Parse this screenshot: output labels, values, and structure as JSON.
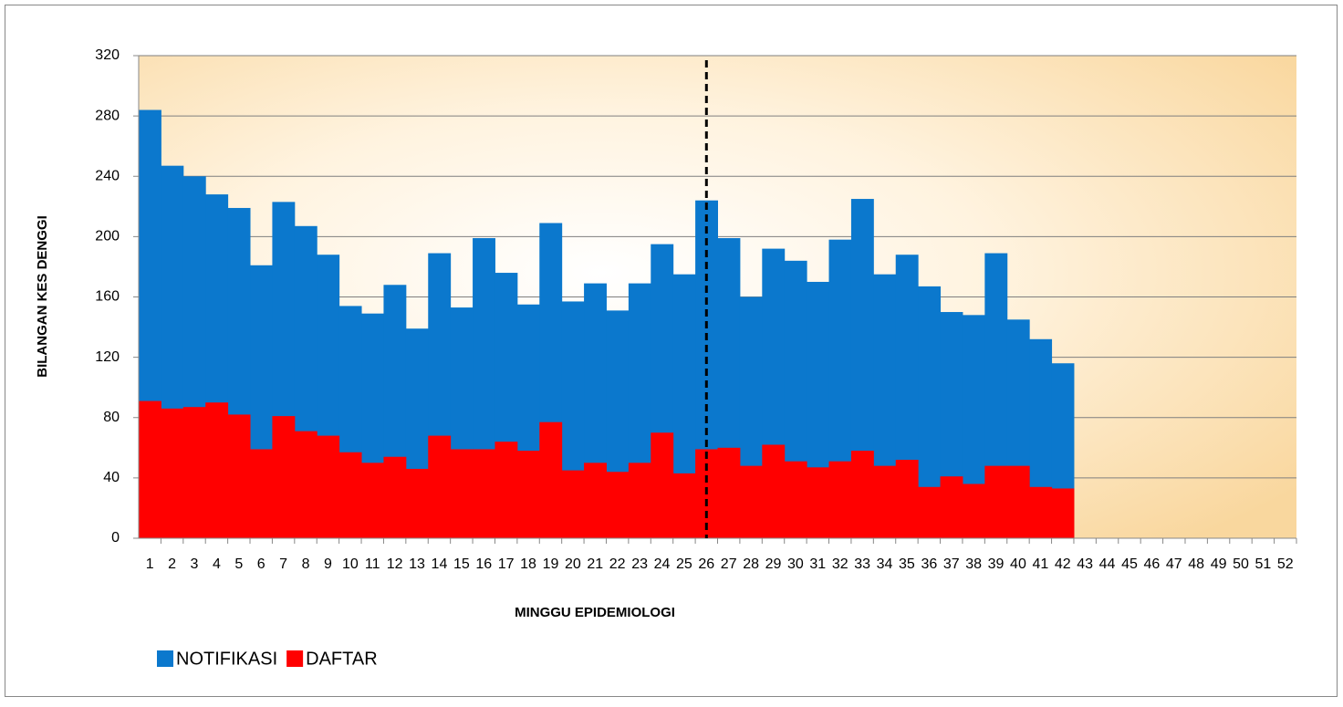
{
  "chart_data": {
    "type": "overlap-bar",
    "x_label": "MINGGU EPIDEMIOLOGI",
    "y_label": "BILANGAN KES DENGGI",
    "categories": [
      1,
      2,
      3,
      4,
      5,
      6,
      7,
      8,
      9,
      10,
      11,
      12,
      13,
      14,
      15,
      16,
      17,
      18,
      19,
      20,
      21,
      22,
      23,
      24,
      25,
      26,
      27,
      28,
      29,
      30,
      31,
      32,
      33,
      34,
      35,
      36,
      37,
      38,
      39,
      40,
      41,
      42,
      43,
      44,
      45,
      46,
      47,
      48,
      49,
      50,
      51,
      52
    ],
    "series": [
      {
        "name": "NOTIFIKASI",
        "color": "#0b78cd",
        "values": [
          284,
          247,
          240,
          228,
          219,
          181,
          223,
          207,
          188,
          154,
          149,
          168,
          139,
          189,
          153,
          199,
          176,
          155,
          209,
          157,
          169,
          151,
          169,
          195,
          175,
          224,
          199,
          160,
          192,
          184,
          170,
          198,
          225,
          175,
          188,
          167,
          150,
          148,
          189,
          145,
          132,
          116,
          null,
          null,
          null,
          null,
          null,
          null,
          null,
          null,
          null,
          null
        ]
      },
      {
        "name": "DAFTAR",
        "color": "#ff0000",
        "values": [
          91,
          86,
          87,
          90,
          82,
          59,
          81,
          71,
          68,
          57,
          50,
          54,
          46,
          68,
          59,
          59,
          64,
          58,
          77,
          45,
          50,
          44,
          50,
          70,
          43,
          59,
          60,
          48,
          62,
          51,
          47,
          51,
          58,
          48,
          52,
          34,
          41,
          36,
          48,
          48,
          34,
          33,
          null,
          null,
          null,
          null,
          null,
          null,
          null,
          null,
          null,
          null
        ]
      }
    ],
    "ylim": [
      0,
      320
    ],
    "yticks": [
      0,
      40,
      80,
      120,
      160,
      200,
      240,
      280,
      320
    ],
    "grid": true,
    "vline_at": 26,
    "legend": "bottom-left"
  }
}
